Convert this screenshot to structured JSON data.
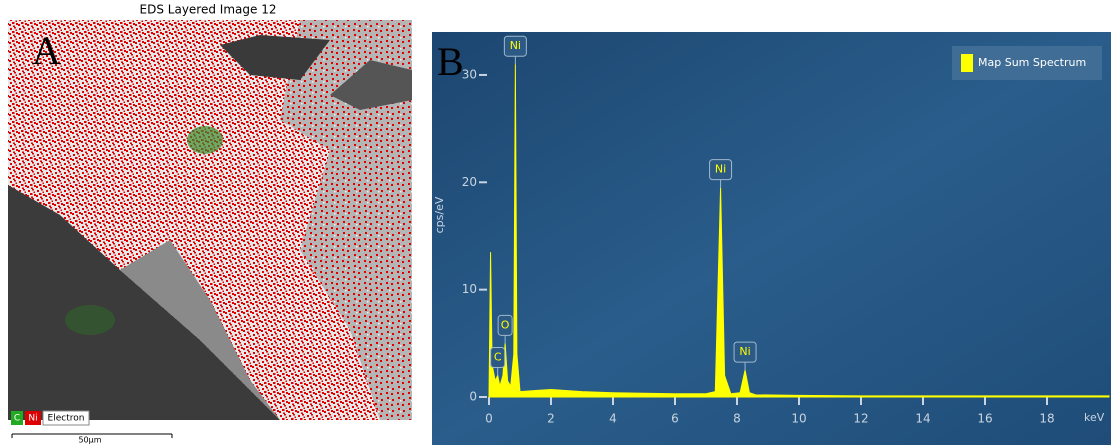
{
  "panel_a": {
    "title": "EDS Layered Image 12",
    "letter": "A",
    "legend": [
      "C",
      "Ni",
      "Electron"
    ],
    "scale_bar": "50µm"
  },
  "chart_data": {
    "type": "area",
    "letter": "B",
    "x_label": "keV",
    "y_label": "cps/eV",
    "x": [
      0,
      0.05,
      0.1,
      0.2,
      0.28,
      0.35,
      0.45,
      0.52,
      0.6,
      0.7,
      0.8,
      0.85,
      0.9,
      1.0,
      1.5,
      2,
      3,
      4,
      5,
      6,
      7,
      7.3,
      7.47,
      7.6,
      7.8,
      8.1,
      8.26,
      8.4,
      8.6,
      10,
      12,
      14,
      16,
      18,
      20
    ],
    "series": [
      {
        "name": "Map Sum Spectrum",
        "color": "#ffff00",
        "values": [
          0,
          13.5,
          3,
          1.5,
          2,
          1,
          2,
          5,
          1.5,
          1,
          4,
          31,
          4,
          0.5,
          0.6,
          0.7,
          0.5,
          0.4,
          0.35,
          0.3,
          0.3,
          0.5,
          19.5,
          2,
          0.3,
          0.4,
          2.5,
          0.4,
          0.2,
          0.15,
          0.1,
          0.1,
          0.1,
          0.1,
          0.1
        ]
      }
    ],
    "annotations": [
      {
        "text": "C",
        "x": 0.28,
        "y": 2
      },
      {
        "text": "O",
        "x": 0.52,
        "y": 5
      },
      {
        "text": "Ni",
        "x": 0.85,
        "y": 31
      },
      {
        "text": "Ni",
        "x": 7.47,
        "y": 19.5
      },
      {
        "text": "Ni",
        "x": 8.26,
        "y": 2.5
      }
    ],
    "xlim": [
      0,
      20
    ],
    "xticks": [
      0,
      2,
      4,
      6,
      8,
      10,
      12,
      14,
      16,
      18
    ],
    "ylim": [
      0,
      34
    ],
    "yticks": [
      0,
      10,
      20,
      30
    ]
  }
}
